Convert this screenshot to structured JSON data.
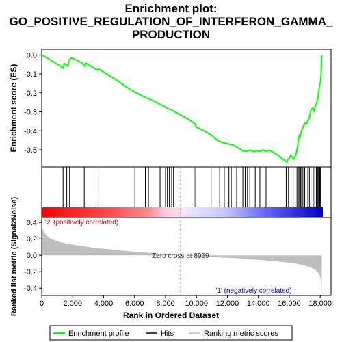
{
  "chart_data": {
    "type": "line",
    "title": "Enrichment plot:\nGO_POSITIVE_REGULATION_OF_INTERFERON_GAMMA_\nPRODUCTION",
    "es_panel": {
      "ylabel": "Enrichment score (ES)",
      "ylim": [
        -0.59,
        0.03
      ],
      "yticks": [
        0.0,
        -0.1,
        -0.2,
        -0.3,
        -0.4,
        -0.5
      ],
      "ytick_labels": [
        "0.0",
        "-0.1",
        "-0.2",
        "-0.3",
        "-0.4",
        "-0.5"
      ],
      "series": [
        {
          "name": "Enrichment profile",
          "color": "#00ff00",
          "x": [
            0,
            400,
            800,
            1200,
            1400,
            1450,
            1700,
            1750,
            1900,
            2200,
            2600,
            2800,
            2850,
            3200,
            3600,
            3700,
            4200,
            4800,
            5400,
            6000,
            6100,
            6500,
            6800,
            6900,
            7300,
            7700,
            8000,
            8100,
            8200,
            8400,
            8600,
            9000,
            9500,
            9900,
            10000,
            10500,
            11000,
            11400,
            11700,
            12000,
            12400,
            12700,
            13000,
            13200,
            13500,
            13700,
            13900,
            14100,
            14300,
            14500,
            14700,
            15000,
            15300,
            15600,
            15850,
            15900,
            16000,
            16100,
            16200,
            16300,
            16450,
            16550,
            16600,
            16650,
            16700,
            16750,
            16800,
            16900,
            17000,
            17100,
            17200,
            17300,
            17400,
            17500,
            17600,
            17700,
            17750,
            17800,
            17850,
            17900,
            17950,
            18000,
            18050,
            18100
          ],
          "y": [
            0.0,
            -0.018,
            -0.038,
            -0.058,
            -0.07,
            -0.045,
            -0.058,
            -0.03,
            -0.015,
            -0.025,
            -0.042,
            -0.06,
            -0.043,
            -0.06,
            -0.08,
            -0.075,
            -0.1,
            -0.13,
            -0.165,
            -0.195,
            -0.2,
            -0.215,
            -0.228,
            -0.23,
            -0.245,
            -0.262,
            -0.275,
            -0.28,
            -0.285,
            -0.29,
            -0.3,
            -0.318,
            -0.34,
            -0.362,
            -0.38,
            -0.4,
            -0.425,
            -0.452,
            -0.462,
            -0.468,
            -0.475,
            -0.49,
            -0.505,
            -0.508,
            -0.502,
            -0.51,
            -0.504,
            -0.508,
            -0.5,
            -0.508,
            -0.502,
            -0.515,
            -0.53,
            -0.55,
            -0.565,
            -0.55,
            -0.545,
            -0.528,
            -0.54,
            -0.548,
            -0.52,
            -0.475,
            -0.44,
            -0.42,
            -0.435,
            -0.41,
            -0.398,
            -0.38,
            -0.358,
            -0.365,
            -0.35,
            -0.33,
            -0.29,
            -0.28,
            -0.295,
            -0.265,
            -0.262,
            -0.24,
            -0.23,
            -0.2,
            -0.16,
            -0.15,
            -0.11,
            0.0
          ]
        }
      ]
    },
    "hits_panel": {
      "color": "#000000",
      "hit_positions": [
        1380,
        1620,
        1800,
        2750,
        3650,
        6020,
        6700,
        6900,
        7650,
        8000,
        8120,
        8250,
        8400,
        8520,
        9850,
        9950,
        10950,
        11500,
        11800,
        12100,
        12250,
        12600,
        13000,
        13150,
        13300,
        13450,
        13800,
        14100,
        14300,
        14500,
        15800,
        15950,
        16250,
        16500,
        16560,
        16620,
        16680,
        16730,
        16800,
        16880,
        17000,
        17200,
        17300,
        17400,
        17550,
        17650,
        17750,
        17820,
        17870,
        17920,
        17970,
        18020,
        18060
      ]
    },
    "metric_panel": {
      "ylabel": "Ranked list metric (Signal2Noise)",
      "xlabel": "Rank in Ordered Dataset",
      "ylim": [
        -0.49,
        0.46
      ],
      "yticks": [
        0.4,
        0.2,
        0.0,
        -0.2,
        -0.4
      ],
      "ytick_labels": [
        "0.4",
        "0.2",
        "0.0",
        "-0.2",
        "-0.4"
      ],
      "xlim": [
        0,
        18700
      ],
      "xticks": [
        0,
        2000,
        4000,
        6000,
        8000,
        10000,
        12000,
        14000,
        16000,
        18000
      ],
      "xtick_labels": [
        "0",
        "2,000",
        "4,000",
        "6,000",
        "8,000",
        "10,000",
        "12,000",
        "14,000",
        "16,000",
        "18,000"
      ],
      "fill_color": "#bebebe",
      "x": [
        0,
        50,
        150,
        300,
        500,
        800,
        1200,
        1700,
        2500,
        3500,
        4500,
        5500,
        6500,
        7500,
        8500,
        8969,
        9500,
        10500,
        11500,
        12500,
        13500,
        14500,
        15500,
        16500,
        17000,
        17400,
        17700,
        17900,
        18000,
        18080,
        18100
      ],
      "y": [
        0.4,
        0.33,
        0.28,
        0.24,
        0.21,
        0.185,
        0.16,
        0.14,
        0.115,
        0.09,
        0.07,
        0.052,
        0.036,
        0.02,
        0.006,
        0.0,
        -0.005,
        -0.015,
        -0.025,
        -0.035,
        -0.047,
        -0.062,
        -0.08,
        -0.105,
        -0.125,
        -0.15,
        -0.18,
        -0.22,
        -0.26,
        -0.34,
        -0.48
      ],
      "zero_cross": 8969,
      "zero_cross_label": "Zero cross at 8969",
      "pos_label": "'2' (positively correlated)",
      "neg_label": "'1' (negatively correlated)",
      "pos_color": "#ff0000",
      "neg_color": "#0000ff"
    },
    "legend": {
      "placement": "bottom",
      "items": [
        {
          "label": "Enrichment profile",
          "color": "#00ff00"
        },
        {
          "label": "Hits",
          "color": "#000000"
        },
        {
          "label": "Ranking metric scores",
          "color": "#bebebe"
        }
      ]
    }
  }
}
